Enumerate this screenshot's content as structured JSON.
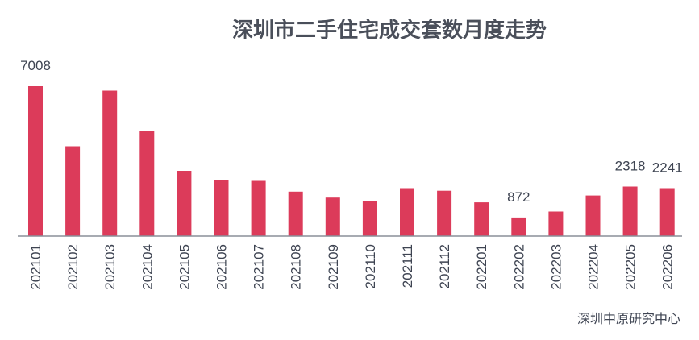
{
  "chart_data": {
    "type": "bar",
    "title": "深圳市二手住宅成交套数月度走势",
    "source": "深圳中原研究中心",
    "categories": [
      "202101",
      "202102",
      "202103",
      "202104",
      "202105",
      "202106",
      "202107",
      "202108",
      "202109",
      "202110",
      "202111",
      "202112",
      "202201",
      "202202",
      "202203",
      "202204",
      "202205",
      "202206"
    ],
    "values": [
      7008,
      4200,
      6800,
      4900,
      3050,
      2600,
      2580,
      2080,
      1800,
      1620,
      2240,
      2120,
      1580,
      872,
      1150,
      1900,
      2318,
      2241
    ],
    "data_labels": {
      "0": "7008",
      "13": "872",
      "16": "2318",
      "17": "2241"
    },
    "bar_color": "#dc3b5a",
    "axis_color": "#8a8f99",
    "ylim": [
      0,
      7008
    ],
    "grid": false,
    "legend": "none"
  }
}
